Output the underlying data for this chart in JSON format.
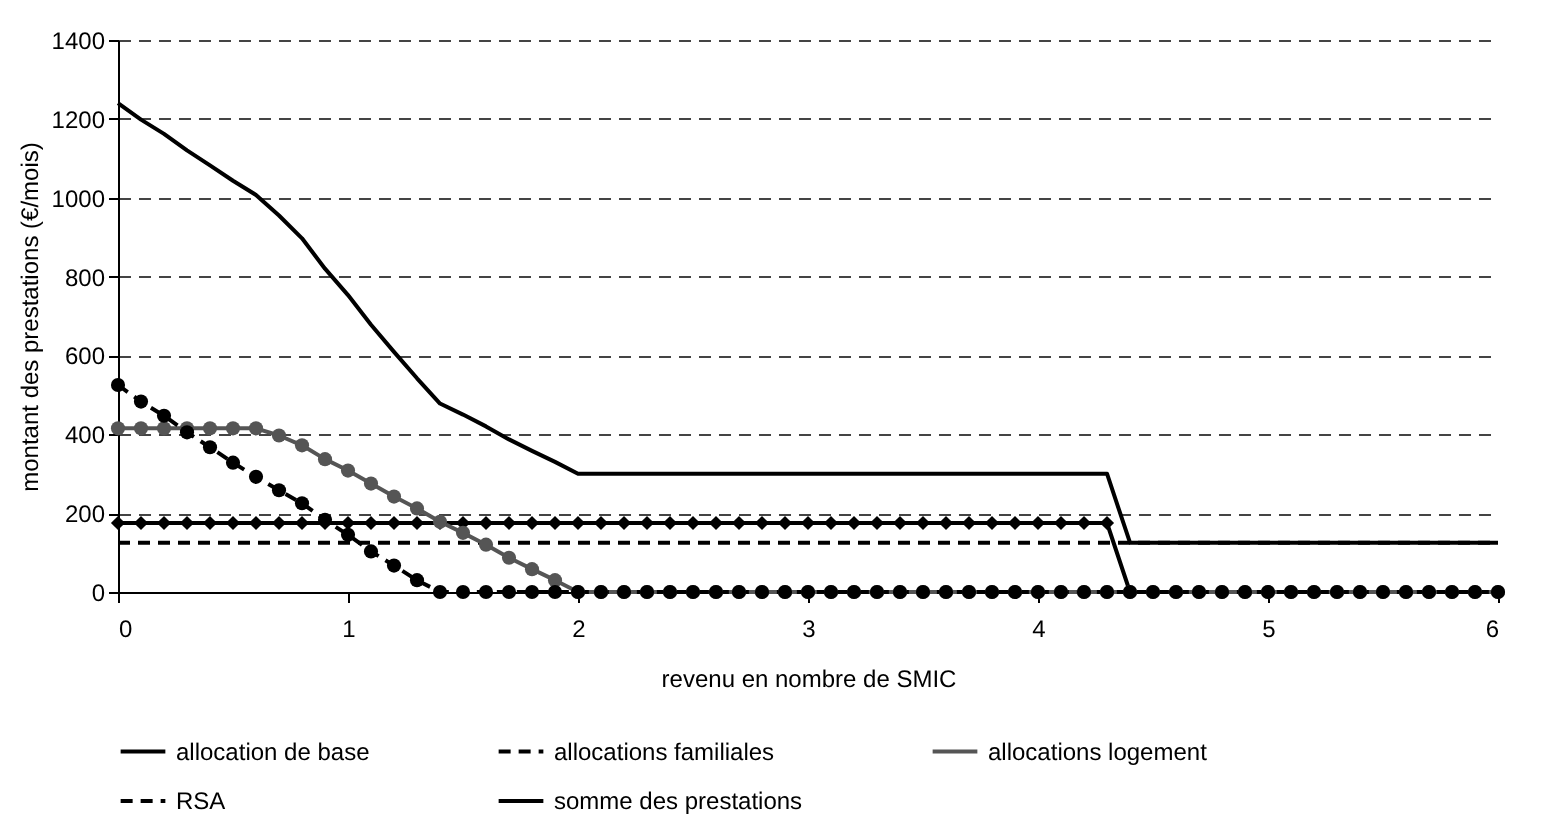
{
  "chart_data": {
    "type": "line",
    "xlabel": "revenu en nombre de SMIC",
    "ylabel": "montant des prestations (€/mois)",
    "x": [
      0,
      0.1,
      0.2,
      0.3,
      0.4,
      0.5,
      0.6,
      0.7,
      0.8,
      0.9,
      1,
      1.1,
      1.2,
      1.3,
      1.4,
      1.5,
      1.6,
      1.7,
      1.8,
      1.9,
      2,
      2.1,
      2.2,
      2.3,
      2.4,
      2.5,
      2.6,
      2.7,
      2.8,
      2.9,
      3,
      3.1,
      3.2,
      3.3,
      3.4,
      3.5,
      3.6,
      3.7,
      3.8,
      3.9,
      4,
      4.1,
      4.2,
      4.3,
      4.4,
      4.5,
      4.6,
      4.7,
      4.8,
      4.9,
      5,
      5.1,
      5.2,
      5.3,
      5.4,
      5.5,
      5.6,
      5.7,
      5.8,
      5.9,
      6
    ],
    "xlim": [
      0,
      6
    ],
    "xticks": [
      0,
      1,
      2,
      3,
      4,
      5,
      6
    ],
    "ylim": [
      0,
      1400
    ],
    "yticks": [
      0,
      200,
      400,
      600,
      800,
      1000,
      1200,
      1400
    ],
    "grid": "y",
    "legend": "bottom",
    "series": [
      {
        "name": "allocation de base",
        "color": "#000000",
        "marker": "diamond",
        "line_style": "solid",
        "values": [
          175,
          175,
          175,
          175,
          175,
          175,
          175,
          175,
          175,
          175,
          175,
          175,
          175,
          175,
          175,
          175,
          175,
          175,
          175,
          175,
          175,
          175,
          175,
          175,
          175,
          175,
          175,
          175,
          175,
          175,
          175,
          175,
          175,
          175,
          175,
          175,
          175,
          175,
          175,
          175,
          175,
          175,
          175,
          175,
          0,
          0,
          0,
          0,
          0,
          0,
          0,
          0,
          0,
          0,
          0,
          0,
          0,
          0,
          0,
          0,
          0
        ]
      },
      {
        "name": "allocations familiales",
        "color": "#000000",
        "marker": "none",
        "line_style": "dashed",
        "values": [
          125,
          125,
          125,
          125,
          125,
          125,
          125,
          125,
          125,
          125,
          125,
          125,
          125,
          125,
          125,
          125,
          125,
          125,
          125,
          125,
          125,
          125,
          125,
          125,
          125,
          125,
          125,
          125,
          125,
          125,
          125,
          125,
          125,
          125,
          125,
          125,
          125,
          125,
          125,
          125,
          125,
          125,
          125,
          125,
          125,
          125,
          125,
          125,
          125,
          125,
          125,
          125,
          125,
          125,
          125,
          125,
          125,
          125,
          125,
          125,
          125
        ]
      },
      {
        "name": "allocations logement",
        "color": "#555555",
        "marker": "circle",
        "line_style": "solid",
        "values": [
          415,
          415,
          415,
          415,
          415,
          415,
          415,
          397,
          372,
          337,
          308,
          275,
          242,
          212,
          178,
          150,
          120,
          87,
          58,
          30,
          0,
          0,
          0,
          0,
          0,
          0,
          0,
          0,
          0,
          0,
          0,
          0,
          0,
          0,
          0,
          0,
          0,
          0,
          0,
          0,
          0,
          0,
          0,
          0,
          0,
          0,
          0,
          0,
          0,
          0,
          0,
          0,
          0,
          0,
          0,
          0,
          0,
          0,
          0,
          0,
          0
        ]
      },
      {
        "name": "RSA",
        "color": "#000000",
        "marker": "circle",
        "line_style": "dashed",
        "values": [
          525,
          483,
          447,
          405,
          367,
          328,
          292,
          258,
          225,
          183,
          145,
          103,
          67,
          30,
          0,
          0,
          0,
          0,
          0,
          0,
          0,
          0,
          0,
          0,
          0,
          0,
          0,
          0,
          0,
          0,
          0,
          0,
          0,
          0,
          0,
          0,
          0,
          0,
          0,
          0,
          0,
          0,
          0,
          0,
          0,
          0,
          0,
          0,
          0,
          0,
          0,
          0,
          0,
          0,
          0,
          0,
          0,
          0,
          0,
          0,
          0
        ]
      },
      {
        "name": "somme des prestations",
        "color": "#000000",
        "marker": "none",
        "line_style": "solid",
        "values": [
          1240,
          1198,
          1162,
          1120,
          1082,
          1043,
          1007,
          955,
          897,
          820,
          753,
          678,
          609,
          542,
          478,
          450,
          420,
          387,
          358,
          330,
          300,
          300,
          300,
          300,
          300,
          300,
          300,
          300,
          300,
          300,
          300,
          300,
          300,
          300,
          300,
          300,
          300,
          300,
          300,
          300,
          300,
          300,
          300,
          300,
          125,
          125,
          125,
          125,
          125,
          125,
          125,
          125,
          125,
          125,
          125,
          125,
          125,
          125,
          125,
          125,
          125
        ]
      }
    ]
  }
}
